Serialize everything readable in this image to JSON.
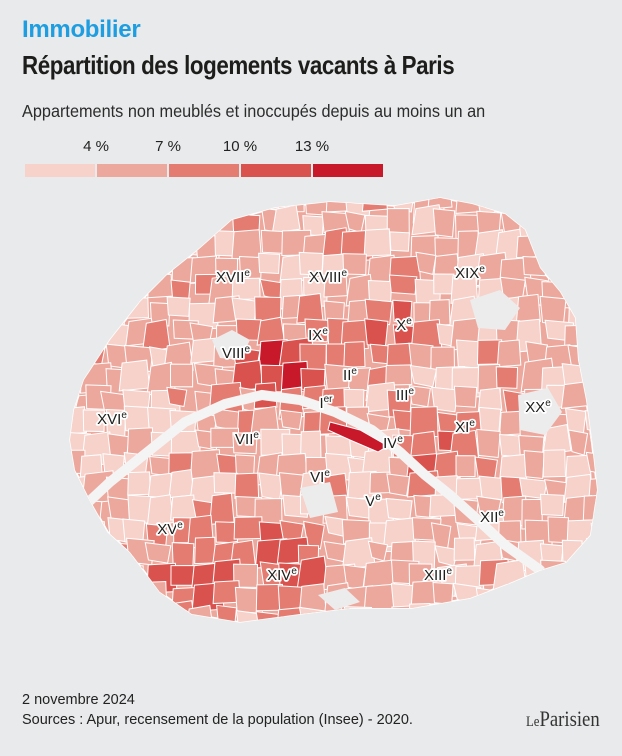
{
  "header": {
    "kicker": "Immobilier",
    "title": "Répartition des logements vacants à Paris",
    "subtitle": "Appartements non meublés et inoccupés depuis au moins un an"
  },
  "legend": {
    "ticks": [
      "4 %",
      "7 %",
      "10 %",
      "13 %"
    ],
    "colors": [
      "#f6d2cb",
      "#eda89d",
      "#e47c72",
      "#d9524d",
      "#c8192b"
    ]
  },
  "map": {
    "arrondissements": [
      {
        "label": "Ier"
      },
      {
        "label": "IIe"
      },
      {
        "label": "IIIe"
      },
      {
        "label": "IVe"
      },
      {
        "label": "Ve"
      },
      {
        "label": "VIe"
      },
      {
        "label": "VIIe"
      },
      {
        "label": "VIIIe"
      },
      {
        "label": "IXe"
      },
      {
        "label": "Xe"
      },
      {
        "label": "XIe"
      },
      {
        "label": "XIIe"
      },
      {
        "label": "XIIIe"
      },
      {
        "label": "XIVe"
      },
      {
        "label": "XVe"
      },
      {
        "label": "XVIe"
      },
      {
        "label": "XVIIe"
      },
      {
        "label": "XVIIIe"
      },
      {
        "label": "XIXe"
      },
      {
        "label": "XXe"
      }
    ],
    "colors": {
      "seine": "#f4f4f4",
      "park": "#ececec"
    }
  },
  "footer": {
    "date": "2 novembre 2024",
    "sources": "Sources : Apur, recensement de la population (Insee) - 2020.",
    "logo_le": "Le",
    "logo_name": "Parisien"
  },
  "colors": {
    "kicker": "#1e9ee0",
    "background": "#e9eaeb"
  }
}
